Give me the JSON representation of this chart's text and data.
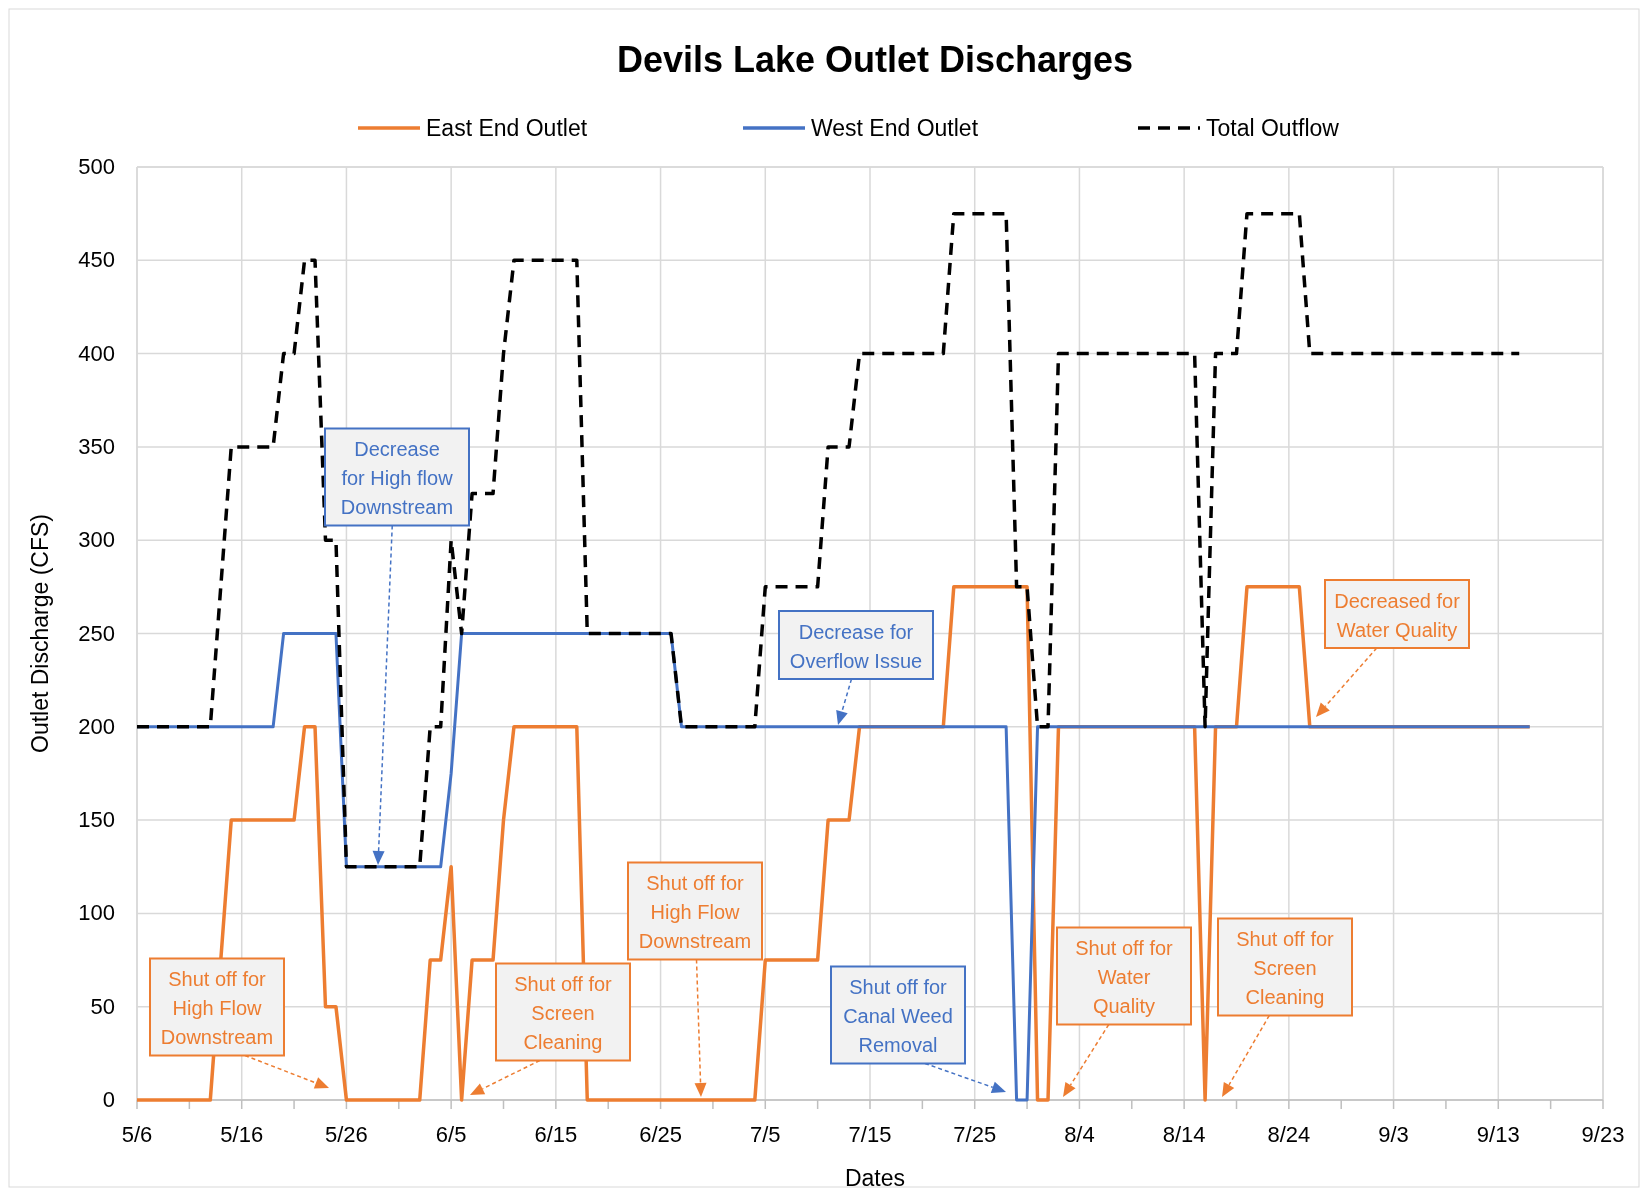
{
  "chart_data": {
    "type": "line",
    "title": "Devils Lake Outlet Discharges",
    "xlabel": "Dates",
    "ylabel": "Outlet Discharge  (CFS)",
    "xlim": [
      "--05-06",
      "--09-23"
    ],
    "xticks": [
      {
        "value": "--05-06",
        "label": "5/6"
      },
      {
        "value": "--05-11",
        "label": null
      },
      {
        "value": "--05-16",
        "label": "5/16"
      },
      {
        "value": "--05-21",
        "label": null
      },
      {
        "value": "--05-26",
        "label": "5/26"
      },
      {
        "value": "--05-31",
        "label": null
      },
      {
        "value": "--06-05",
        "label": "6/5"
      },
      {
        "value": "--06-10",
        "label": null
      },
      {
        "value": "--06-15",
        "label": "6/15"
      },
      {
        "value": "--06-20",
        "label": null
      },
      {
        "value": "--06-25",
        "label": "6/25"
      },
      {
        "value": "--06-30",
        "label": null
      },
      {
        "value": "--07-05",
        "label": "7/5"
      },
      {
        "value": "--07-10",
        "label": null
      },
      {
        "value": "--07-15",
        "label": "7/15"
      },
      {
        "value": "--07-20",
        "label": null
      },
      {
        "value": "--07-25",
        "label": "7/25"
      },
      {
        "value": "--07-30",
        "label": null
      },
      {
        "value": "--08-04",
        "label": "8/4"
      },
      {
        "value": "--08-09",
        "label": null
      },
      {
        "value": "--08-14",
        "label": "8/14"
      },
      {
        "value": "--08-19",
        "label": null
      },
      {
        "value": "--08-24",
        "label": "8/24"
      },
      {
        "value": "--08-29",
        "label": null
      },
      {
        "value": "--09-03",
        "label": "9/3"
      },
      {
        "value": "--09-08",
        "label": null
      },
      {
        "value": "--09-13",
        "label": "9/13"
      },
      {
        "value": "--09-18",
        "label": null
      },
      {
        "value": "--09-23",
        "label": "9/23"
      }
    ],
    "ylim": [
      0,
      500
    ],
    "yticks": [
      0,
      50,
      100,
      150,
      200,
      250,
      300,
      350,
      400,
      450,
      500
    ],
    "grid": true,
    "legend": "top",
    "marker": "none",
    "series": [
      {
        "name": "East End Outlet",
        "color": "#ed7d31",
        "line_style": "solid",
        "x": [
          "--05-06",
          "--05-13",
          "--05-15",
          "--05-21",
          "--05-22",
          "--05-23",
          "--05-24",
          "--05-25",
          "--05-26",
          "--06-02",
          "--06-03",
          "--06-04",
          "--06-05",
          "--06-06",
          "--06-07",
          "--06-09",
          "--06-10",
          "--06-11",
          "--06-17",
          "--06-18",
          "--07-04",
          "--07-05",
          "--07-10",
          "--07-11",
          "--07-13",
          "--07-14",
          "--07-22",
          "--07-23",
          "--07-30",
          "--07-31",
          "--08-01",
          "--08-02",
          "--08-15",
          "--08-16",
          "--08-17",
          "--08-19",
          "--08-20",
          "--08-25",
          "--08-26",
          "--09-16"
        ],
        "values": [
          0,
          0,
          150,
          150,
          200,
          200,
          50,
          50,
          0,
          0,
          75,
          75,
          125,
          0,
          75,
          75,
          150,
          200,
          200,
          0,
          0,
          75,
          75,
          150,
          150,
          200,
          200,
          275,
          275,
          0,
          0,
          200,
          200,
          0,
          200,
          200,
          275,
          275,
          200,
          200
        ]
      },
      {
        "name": "West End Outlet",
        "color": "#4472c4",
        "line_style": "solid",
        "x": [
          "--05-06",
          "--05-19",
          "--05-20",
          "--05-25",
          "--05-26",
          "--06-04",
          "--06-05",
          "--06-06",
          "--06-26",
          "--06-27",
          "--07-28",
          "--07-29",
          "--07-30",
          "--07-31",
          "--09-16"
        ],
        "values": [
          200,
          200,
          250,
          250,
          125,
          125,
          175,
          250,
          250,
          200,
          200,
          0,
          0,
          200,
          200
        ]
      },
      {
        "name": "Total Outflow",
        "color": "#000000",
        "line_style": "dashed",
        "x": [
          "--05-06",
          "--05-13",
          "--05-15",
          "--05-19",
          "--05-20",
          "--05-21",
          "--05-22",
          "--05-23",
          "--05-24",
          "--05-25",
          "--05-26",
          "--06-02",
          "--06-03",
          "--06-04",
          "--06-05",
          "--06-06",
          "--06-07",
          "--06-09",
          "--06-10",
          "--06-11",
          "--06-17",
          "--06-18",
          "--06-26",
          "--06-27",
          "--07-04",
          "--07-05",
          "--07-10",
          "--07-11",
          "--07-13",
          "--07-14",
          "--07-22",
          "--07-23",
          "--07-28",
          "--07-29",
          "--07-30",
          "--07-31",
          "--08-01",
          "--08-02",
          "--08-15",
          "--08-16",
          "--08-17",
          "--08-19",
          "--08-20",
          "--08-25",
          "--08-26",
          "--09-15"
        ],
        "values": [
          200,
          200,
          350,
          350,
          400,
          400,
          450,
          450,
          300,
          300,
          125,
          125,
          200,
          200,
          300,
          250,
          325,
          325,
          400,
          450,
          450,
          250,
          250,
          200,
          200,
          275,
          275,
          350,
          350,
          400,
          400,
          475,
          475,
          275,
          275,
          200,
          200,
          400,
          400,
          200,
          400,
          400,
          475,
          475,
          400,
          400
        ]
      }
    ],
    "annotations": [
      "Shut off for\nHigh Flow\nDownstream",
      "Decrease\nfor High flow\nDownstream",
      "Shut off for\nScreen\nCleaning",
      "Shut off for\nHigh Flow\nDownstream",
      "Decrease for\nOverflow Issue",
      "Shut off for\nCanal Weed\nRemoval",
      "Shut off for\nWater\nQuality",
      "Shut off for\nScreen\nCleaning",
      "Decreased for\nWater Quality"
    ]
  }
}
